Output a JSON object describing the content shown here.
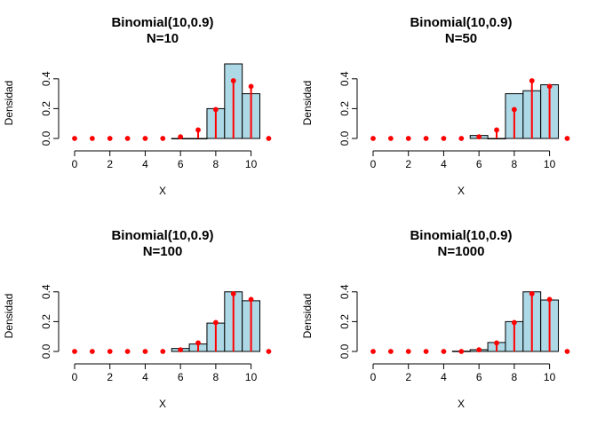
{
  "chart_data": [
    {
      "type": "bar",
      "title": "Binomial(10,0.9)",
      "subtitle": "N=10",
      "xlabel": "X",
      "ylabel": "Densidad",
      "x_ticks": [
        "0",
        "2",
        "4",
        "6",
        "8",
        "10"
      ],
      "y_ticks": [
        "0.0",
        "0.2",
        "0.4"
      ],
      "xlim": [
        -0.5,
        10.8
      ],
      "ylim": [
        0,
        0.52
      ],
      "histogram": {
        "bins": [
          [
            5.5,
            6.5
          ],
          [
            6.5,
            7.5
          ],
          [
            7.5,
            8.5
          ],
          [
            8.5,
            9.5
          ],
          [
            9.5,
            10.5
          ]
        ],
        "density": [
          0.0,
          0.0,
          0.2,
          0.5,
          0.3
        ]
      },
      "pmf": {
        "x": [
          0,
          1,
          2,
          3,
          4,
          5,
          6,
          7,
          8,
          9,
          10,
          11
        ],
        "y": [
          0,
          0,
          0,
          0,
          0,
          0,
          0.011,
          0.057,
          0.194,
          0.387,
          0.349,
          0
        ]
      },
      "colors": {
        "bar_fill": "#add8e6",
        "bar_stroke": "#000000",
        "pmf": "#ff0000"
      },
      "grid": false
    },
    {
      "type": "bar",
      "title": "Binomial(10,0.9)",
      "subtitle": "N=50",
      "xlabel": "X",
      "ylabel": "Densidad",
      "x_ticks": [
        "0",
        "2",
        "4",
        "6",
        "8",
        "10"
      ],
      "y_ticks": [
        "0.0",
        "0.2",
        "0.4"
      ],
      "xlim": [
        -0.5,
        10.8
      ],
      "ylim": [
        0,
        0.52
      ],
      "histogram": {
        "bins": [
          [
            5.5,
            6.5
          ],
          [
            6.5,
            7.5
          ],
          [
            7.5,
            8.5
          ],
          [
            8.5,
            9.5
          ],
          [
            9.5,
            10.5
          ]
        ],
        "density": [
          0.02,
          0.0,
          0.3,
          0.32,
          0.36
        ]
      },
      "pmf": {
        "x": [
          0,
          1,
          2,
          3,
          4,
          5,
          6,
          7,
          8,
          9,
          10,
          11
        ],
        "y": [
          0,
          0,
          0,
          0,
          0,
          0,
          0.011,
          0.057,
          0.194,
          0.387,
          0.349,
          0
        ]
      },
      "colors": {
        "bar_fill": "#add8e6",
        "bar_stroke": "#000000",
        "pmf": "#ff0000"
      },
      "grid": false
    },
    {
      "type": "bar",
      "title": "Binomial(10,0.9)",
      "subtitle": "N=100",
      "xlabel": "X",
      "ylabel": "Densidad",
      "x_ticks": [
        "0",
        "2",
        "4",
        "6",
        "8",
        "10"
      ],
      "y_ticks": [
        "0.0",
        "0.2",
        "0.4"
      ],
      "xlim": [
        -0.5,
        10.8
      ],
      "ylim": [
        0,
        0.52
      ],
      "histogram": {
        "bins": [
          [
            5.5,
            6.5
          ],
          [
            6.5,
            7.5
          ],
          [
            7.5,
            8.5
          ],
          [
            8.5,
            9.5
          ],
          [
            9.5,
            10.5
          ]
        ],
        "density": [
          0.02,
          0.05,
          0.19,
          0.4,
          0.34
        ]
      },
      "pmf": {
        "x": [
          0,
          1,
          2,
          3,
          4,
          5,
          6,
          7,
          8,
          9,
          10,
          11
        ],
        "y": [
          0,
          0,
          0,
          0,
          0,
          0,
          0.011,
          0.057,
          0.194,
          0.387,
          0.349,
          0
        ]
      },
      "colors": {
        "bar_fill": "#add8e6",
        "bar_stroke": "#000000",
        "pmf": "#ff0000"
      },
      "grid": false
    },
    {
      "type": "bar",
      "title": "Binomial(10,0.9)",
      "subtitle": "N=1000",
      "xlabel": "X",
      "ylabel": "Densidad",
      "x_ticks": [
        "0",
        "2",
        "4",
        "6",
        "8",
        "10"
      ],
      "y_ticks": [
        "0.0",
        "0.2",
        "0.4"
      ],
      "xlim": [
        -0.5,
        10.8
      ],
      "ylim": [
        0,
        0.52
      ],
      "histogram": {
        "bins": [
          [
            4.5,
            5.5
          ],
          [
            5.5,
            6.5
          ],
          [
            6.5,
            7.5
          ],
          [
            7.5,
            8.5
          ],
          [
            8.5,
            9.5
          ],
          [
            9.5,
            10.5
          ]
        ],
        "density": [
          0.002,
          0.012,
          0.06,
          0.2,
          0.4,
          0.345
        ]
      },
      "pmf": {
        "x": [
          0,
          1,
          2,
          3,
          4,
          5,
          6,
          7,
          8,
          9,
          10,
          11
        ],
        "y": [
          0,
          0,
          0,
          0,
          0,
          0,
          0.011,
          0.057,
          0.194,
          0.387,
          0.349,
          0
        ]
      },
      "colors": {
        "bar_fill": "#add8e6",
        "bar_stroke": "#000000",
        "pmf": "#ff0000"
      },
      "grid": false
    }
  ]
}
